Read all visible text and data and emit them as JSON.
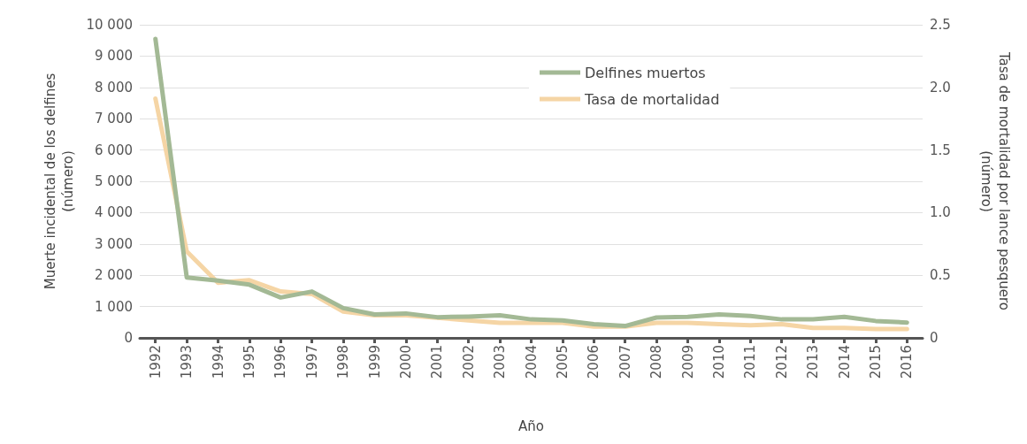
{
  "chart_data": {
    "type": "line",
    "xlabel": "Año",
    "ylabel": "Muerte incidental de los delfines\n(número)",
    "y2label": "Tasa de mortalidad por lance pesquero\n(número)",
    "categories": [
      "1992",
      "1993",
      "1994",
      "1995",
      "1996",
      "1997",
      "1998",
      "1999",
      "2000",
      "2001",
      "2002",
      "2003",
      "2004",
      "2005",
      "2006",
      "2007",
      "2008",
      "2009",
      "2010",
      "2011",
      "2012",
      "2013",
      "2014",
      "2015",
      "2016"
    ],
    "series": [
      {
        "name": "Delfines muertos",
        "color": "#a3b995",
        "values": [
          9550,
          1930,
          1830,
          1700,
          1290,
          1480,
          950,
          750,
          780,
          660,
          680,
          720,
          590,
          560,
          440,
          380,
          650,
          670,
          750,
          700,
          590,
          590,
          670,
          540,
          490
        ]
      },
      {
        "name": "Tasa de mortalidad",
        "color": "#f5d5a5",
        "axis": "y2",
        "values": [
          1.91,
          0.69,
          0.44,
          0.46,
          0.37,
          0.35,
          0.21,
          0.18,
          0.18,
          0.16,
          0.14,
          0.12,
          0.12,
          0.12,
          0.09,
          0.09,
          0.12,
          0.12,
          0.11,
          0.1,
          0.11,
          0.08,
          0.08,
          0.07,
          0.07
        ]
      }
    ],
    "ylim": [
      0,
      10000
    ],
    "yticks": [
      0,
      {
        "value": 1000,
        "label": "1 000"
      },
      {
        "value": 2000,
        "label": "2 000"
      },
      {
        "value": 3000,
        "label": "3 000"
      },
      {
        "value": 4000,
        "label": "4 000"
      },
      {
        "value": 5000,
        "label": "5 000"
      },
      {
        "value": 6000,
        "label": "6 000"
      },
      {
        "value": 7000,
        "label": "7 000"
      },
      {
        "value": 8000,
        "label": "8 000"
      },
      {
        "value": 9000,
        "label": "9 000"
      },
      {
        "value": 10000,
        "label": "10 000"
      }
    ],
    "y2lim": [
      0,
      2.5
    ],
    "y2ticks": [
      0,
      0.5,
      {
        "value": 1,
        "label": "1.0"
      },
      1.5,
      {
        "value": 2,
        "label": "2.0"
      },
      2.5
    ],
    "grid": "y",
    "legend": "top",
    "marker": "none",
    "line_style": "solid"
  }
}
